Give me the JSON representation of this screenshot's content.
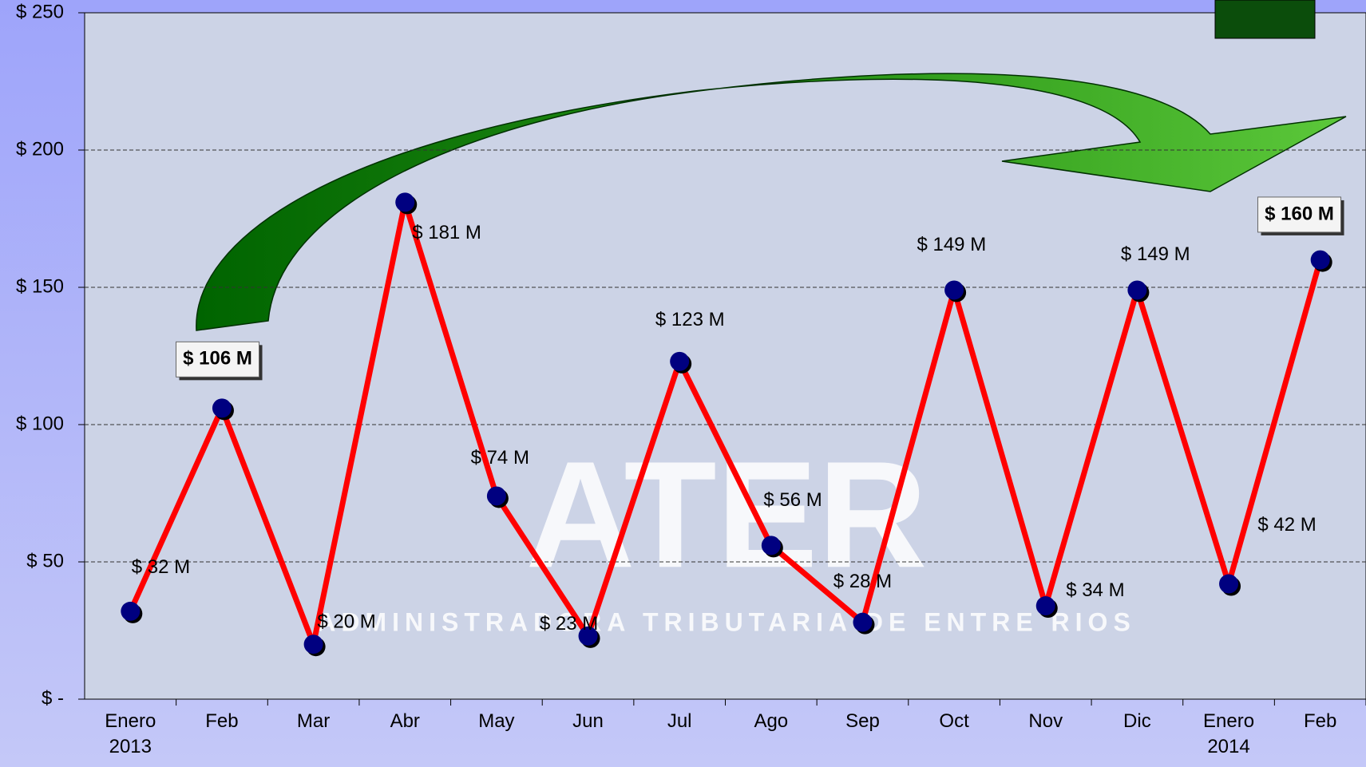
{
  "chart_data": {
    "type": "line",
    "categories": [
      "Enero 2013",
      "Feb",
      "Mar",
      "Abr",
      "May",
      "Jun",
      "Jul",
      "Ago",
      "Sep",
      "Oct",
      "Nov",
      "Dic",
      "Enero 2014",
      "Feb"
    ],
    "values": [
      32,
      106,
      20,
      181,
      74,
      23,
      123,
      56,
      28,
      149,
      34,
      149,
      42,
      160
    ],
    "value_labels": [
      "$ 32 M",
      "$ 106 M",
      "$ 20 M",
      "$ 181 M",
      "$ 74 M",
      "$ 23 M",
      "$ 123 M",
      "$ 56 M",
      "$ 28 M",
      "$ 149 M",
      "$ 34 M",
      "$ 149 M",
      "$ 42 M",
      "$ 160 M"
    ],
    "highlighted": [
      1,
      13
    ],
    "color": "#ff0000",
    "marker_color": "#000080",
    "ylim": [
      0,
      250
    ],
    "yticks": [
      {
        "value": 0,
        "label": "$ -"
      },
      {
        "value": 50,
        "label": "$ 50"
      },
      {
        "value": 100,
        "label": "$ 100"
      },
      {
        "value": 150,
        "label": "$ 150"
      },
      {
        "value": 200,
        "label": "$ 200"
      },
      {
        "value": 250,
        "label": "$ 250"
      }
    ],
    "grid": true,
    "watermark": {
      "title": "ATER",
      "subtitle": "ADMINISTRADORA TRIBUTARIA DE ENTRE RIOS"
    }
  }
}
